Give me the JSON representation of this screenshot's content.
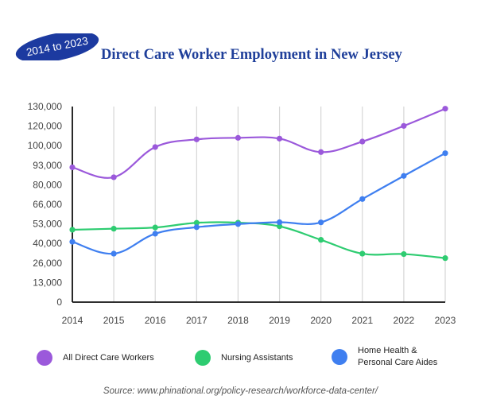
{
  "badge_label": "2014 to 2023",
  "title": "Direct Care Worker Employment in New Jersey",
  "source": "Source: www.phinational.org/policy-research/workforce-data-center/",
  "colors": {
    "title": "#1f3f9a",
    "badge": "#1c3aa0",
    "all_workers": "#9b59db",
    "nursing": "#2ecc71",
    "home_health": "#3f7ff0",
    "grid": "#d6d6d6",
    "axis": "#111111",
    "text": "#444444"
  },
  "legend": [
    {
      "label": "All Direct Care Workers",
      "color": "#9b59db"
    },
    {
      "label": "Nursing Assistants",
      "color": "#2ecc71"
    },
    {
      "label": "Home Health &\nPersonal Care Aides",
      "color": "#3f7ff0"
    }
  ],
  "chart_data": {
    "type": "line",
    "title": "Direct Care Worker Employment in New Jersey",
    "x": [
      "2014",
      "2015",
      "2016",
      "2017",
      "2018",
      "2019",
      "2020",
      "2021",
      "2022",
      "2023"
    ],
    "y_ticks": [
      "0",
      "13,000",
      "26,000",
      "40,000",
      "53,000",
      "66,000",
      "80,000",
      "93,000",
      "100,000",
      "120,000",
      "130,000"
    ],
    "grid": "vertical",
    "legend_position": "bottom",
    "series": [
      {
        "name": "All Direct Care Workers",
        "color": "#9b59db",
        "values": [
          91600,
          85000,
          99500,
          106400,
          108000,
          107200,
          97700,
          104200,
          120100,
          128900
        ]
      },
      {
        "name": "Nursing Assistants",
        "color": "#2ecc71",
        "values": [
          49100,
          49800,
          50600,
          53700,
          53800,
          51400,
          42400,
          32700,
          32400,
          29500
        ]
      },
      {
        "name": "Home Health & Personal Care Aides",
        "color": "#3f7ff0",
        "values": [
          41100,
          32700,
          46500,
          50800,
          52900,
          54100,
          54000,
          69800,
          85900,
          97300
        ]
      }
    ]
  }
}
